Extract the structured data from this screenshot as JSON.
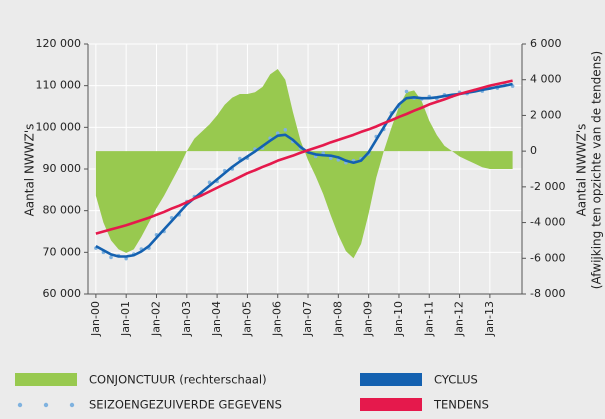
{
  "chart_data": {
    "type": "line",
    "y_label": "Aantal NWWZ's",
    "y2_label": [
      "Aantal NWWZ's",
      "(Afwijking ten opzichte van de tendens)"
    ],
    "x": [
      2000,
      2000.25,
      2000.5,
      2000.75,
      2001,
      2001.25,
      2001.5,
      2001.75,
      2002,
      2002.25,
      2002.5,
      2002.75,
      2003,
      2003.25,
      2003.5,
      2003.75,
      2004,
      2004.25,
      2004.5,
      2004.75,
      2005,
      2005.25,
      2005.5,
      2005.75,
      2006,
      2006.25,
      2006.5,
      2006.75,
      2007,
      2007.25,
      2007.5,
      2007.75,
      2008,
      2008.25,
      2008.5,
      2008.75,
      2009,
      2009.25,
      2009.5,
      2009.75,
      2010,
      2010.25,
      2010.5,
      2010.75,
      2011,
      2011.25,
      2011.5,
      2011.75,
      2012,
      2012.25,
      2012.5,
      2012.75,
      2013,
      2013.25,
      2013.5,
      2013.75
    ],
    "xlim": [
      1999.74,
      2014.06
    ],
    "xticks": [
      {
        "value": 2000,
        "label": "Jan-00"
      },
      {
        "value": 2001,
        "label": "Jan-01"
      },
      {
        "value": 2002,
        "label": "Jan-02"
      },
      {
        "value": 2003,
        "label": "Jan-03"
      },
      {
        "value": 2004,
        "label": "Jan-04"
      },
      {
        "value": 2005,
        "label": "Jan-05"
      },
      {
        "value": 2006,
        "label": "Jan-06"
      },
      {
        "value": 2007,
        "label": "Jan-07"
      },
      {
        "value": 2008,
        "label": "Jan-08"
      },
      {
        "value": 2009,
        "label": "Jan-09"
      },
      {
        "value": 2010,
        "label": "Jan-10"
      },
      {
        "value": 2011,
        "label": "Jan-11"
      },
      {
        "value": 2012,
        "label": "Jan-12"
      },
      {
        "value": 2013,
        "label": "Jan-13"
      }
    ],
    "ylim": [
      60000,
      120000
    ],
    "yticks": [
      {
        "value": 60000,
        "label": "60 000"
      },
      {
        "value": 70000,
        "label": "70 000"
      },
      {
        "value": 80000,
        "label": "80 000"
      },
      {
        "value": 90000,
        "label": "90 000"
      },
      {
        "value": 100000,
        "label": "100 000"
      },
      {
        "value": 110000,
        "label": "110 000"
      },
      {
        "value": 120000,
        "label": "120 000"
      }
    ],
    "y2lim": [
      -8000,
      6000
    ],
    "y2ticks": [
      {
        "value": -8000,
        "label": "-8 000"
      },
      {
        "value": -6000,
        "label": "-6 000"
      },
      {
        "value": -4000,
        "label": "-4 000"
      },
      {
        "value": -2000,
        "label": "-2 000"
      },
      0,
      {
        "value": 2000,
        "label": "2 000"
      },
      {
        "value": 4000,
        "label": "4 000"
      },
      {
        "value": 6000,
        "label": "6 000"
      }
    ],
    "grid": true,
    "series": [
      {
        "name": "CONJONCTUUR (rechterschaal)",
        "type": "area",
        "axis": "y2",
        "color": "#98c94f",
        "values": [
          -2500,
          -4000,
          -5000,
          -5500,
          -5700,
          -5500,
          -4800,
          -4000,
          -3200,
          -2500,
          -1700,
          -900,
          0,
          700,
          1100,
          1500,
          2000,
          2600,
          3000,
          3200,
          3200,
          3300,
          3600,
          4300,
          4600,
          4000,
          2200,
          600,
          -500,
          -1400,
          -2400,
          -3600,
          -4700,
          -5600,
          -6000,
          -5200,
          -3500,
          -1500,
          0,
          1300,
          2500,
          3300,
          3400,
          2800,
          1700,
          900,
          300,
          0,
          -300,
          -500,
          -700,
          -900,
          -1000,
          -1000,
          -1000,
          -1000
        ]
      },
      {
        "name": "SEIZOENGEZUIVERDE GEGEVENS",
        "type": "scatter",
        "color": "#7fb2df",
        "values": [
          71000,
          70000,
          68800,
          69200,
          68500,
          69600,
          70800,
          71000,
          74200,
          75000,
          78300,
          79000,
          82200,
          83400,
          84000,
          86800,
          87000,
          89600,
          90000,
          92500,
          92600,
          94800,
          95000,
          97400,
          98600,
          99400,
          96600,
          95000,
          94400,
          93000,
          93800,
          92600,
          92200,
          91500,
          92000,
          92500,
          93600,
          97800,
          99500,
          103500,
          105000,
          108600,
          107000,
          106800,
          107400,
          106900,
          107800,
          107500,
          108400,
          108100,
          108900,
          108700,
          109600,
          109400,
          110200,
          109900
        ]
      },
      {
        "name": "CYCLUS",
        "type": "line",
        "color": "#1461b0",
        "values": [
          71500,
          70500,
          69500,
          69000,
          69000,
          69300,
          70200,
          71500,
          73500,
          75500,
          77500,
          79500,
          81500,
          83000,
          84500,
          86000,
          87500,
          89000,
          90500,
          91800,
          93000,
          94200,
          95500,
          96800,
          98000,
          98200,
          97000,
          95300,
          94000,
          93500,
          93300,
          93200,
          92800,
          92000,
          91500,
          92000,
          94000,
          97000,
          100000,
          103000,
          105500,
          107000,
          107200,
          107000,
          107000,
          107200,
          107500,
          107800,
          108000,
          108300,
          108600,
          109000,
          109300,
          109700,
          110000,
          110400
        ]
      },
      {
        "name": "TENDENS",
        "type": "line",
        "color": "#e5194c",
        "values": [
          74500,
          75000,
          75500,
          76000,
          76500,
          77100,
          77700,
          78300,
          79000,
          79700,
          80500,
          81200,
          82000,
          82900,
          83700,
          84600,
          85500,
          86400,
          87200,
          88100,
          89000,
          89700,
          90500,
          91200,
          92000,
          92600,
          93200,
          93900,
          94500,
          95100,
          95700,
          96400,
          97000,
          97600,
          98200,
          98900,
          99500,
          100200,
          101000,
          101700,
          102500,
          103200,
          104000,
          104700,
          105500,
          106100,
          106700,
          107400,
          108000,
          108500,
          109000,
          109500,
          110000,
          110400,
          110800,
          111200
        ]
      }
    ]
  }
}
